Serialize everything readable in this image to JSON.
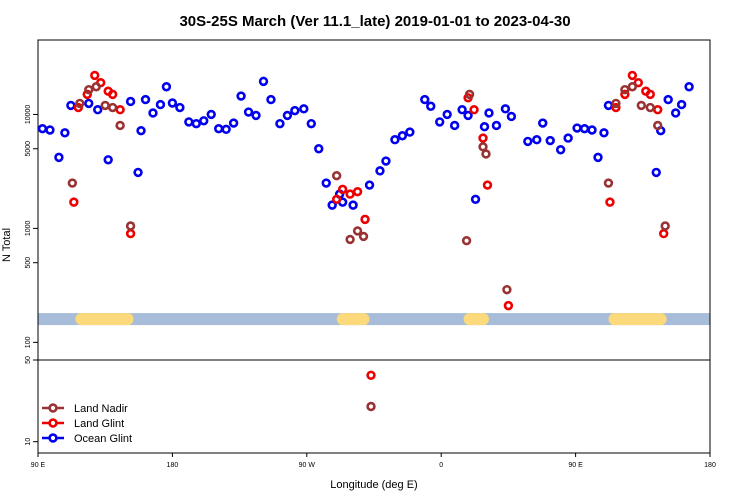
{
  "chart_data": {
    "type": "scatter",
    "title": "30S-25S March (Ver 11.1_late)   2019-01-01 to 2023-04-30",
    "xlabel": "Longitude (deg E)",
    "ylabel": "N Total",
    "x_ticks": [
      {
        "value": 90,
        "label": "90 E"
      },
      {
        "value": 180,
        "label": "180"
      },
      {
        "value": 270,
        "label": "90 W"
      },
      {
        "value": 360,
        "label": "0"
      },
      {
        "value": 450,
        "label": "90 E"
      },
      {
        "value": 540,
        "label": "180"
      }
    ],
    "xlim": [
      90,
      540
    ],
    "upper_panel": {
      "scale": "log",
      "ylim": [
        70,
        45000
      ],
      "y_ticks": [
        {
          "value": 100,
          "label": "100"
        },
        {
          "value": 500,
          "label": "500"
        },
        {
          "value": 1000,
          "label": "1000"
        },
        {
          "value": 5000,
          "label": "5000"
        },
        {
          "value": 10000,
          "label": "10000"
        }
      ]
    },
    "lower_panel": {
      "scale": "log",
      "ylim": [
        8,
        50
      ],
      "y_ticks": [
        {
          "value": 10,
          "label": "10"
        },
        {
          "value": 50,
          "label": "50"
        }
      ]
    },
    "land_strip": {
      "y_value": 160,
      "ocean_color": "#a7bcd8",
      "land_color": "#fcd97a",
      "land_ranges": [
        [
          115,
          154
        ],
        [
          290,
          312
        ],
        [
          375,
          392
        ],
        [
          472,
          511
        ]
      ]
    },
    "series": [
      {
        "name": "Ocean Glint",
        "color": "#0000ee",
        "points": [
          [
            93,
            7500
          ],
          [
            98,
            7300
          ],
          [
            104,
            4200
          ],
          [
            108,
            6900
          ],
          [
            112,
            12000
          ],
          [
            124,
            12500
          ],
          [
            130,
            11000
          ],
          [
            137,
            4000
          ],
          [
            152,
            13000
          ],
          [
            157,
            3100
          ],
          [
            159,
            7200
          ],
          [
            162,
            13500
          ],
          [
            167,
            10300
          ],
          [
            172,
            12200
          ],
          [
            176,
            17500
          ],
          [
            180,
            12600
          ],
          [
            185,
            11500
          ],
          [
            191,
            8600
          ],
          [
            196,
            8300
          ],
          [
            201,
            8800
          ],
          [
            206,
            10000
          ],
          [
            211,
            7500
          ],
          [
            216,
            7400
          ],
          [
            221,
            8400
          ],
          [
            226,
            14500
          ],
          [
            231,
            10500
          ],
          [
            236,
            9800
          ],
          [
            241,
            19500
          ],
          [
            246,
            13500
          ],
          [
            252,
            8300
          ],
          [
            257,
            9800
          ],
          [
            262,
            10800
          ],
          [
            268,
            11200
          ],
          [
            273,
            8300
          ],
          [
            278,
            5000
          ],
          [
            283,
            2500
          ],
          [
            287,
            1600
          ],
          [
            292,
            2000
          ],
          [
            294,
            1700
          ],
          [
            301,
            1600
          ],
          [
            312,
            2400
          ],
          [
            319,
            3200
          ],
          [
            323,
            3900
          ],
          [
            329,
            6000
          ],
          [
            334,
            6500
          ],
          [
            339,
            7000
          ],
          [
            349,
            13500
          ],
          [
            353,
            11800
          ],
          [
            359,
            8600
          ],
          [
            364,
            10000
          ],
          [
            369,
            8000
          ],
          [
            374,
            11000
          ],
          [
            378,
            9800
          ],
          [
            383,
            1800
          ],
          [
            389,
            7800
          ],
          [
            392,
            10300
          ],
          [
            397,
            8000
          ],
          [
            403,
            11200
          ],
          [
            407,
            9600
          ],
          [
            418,
            5800
          ],
          [
            424,
            6000
          ],
          [
            428,
            8400
          ],
          [
            433,
            5900
          ],
          [
            440,
            4900
          ],
          [
            445,
            6200
          ],
          [
            451,
            7600
          ],
          [
            456,
            7500
          ],
          [
            461,
            7300
          ],
          [
            465,
            4200
          ],
          [
            469,
            6900
          ],
          [
            472,
            12000
          ],
          [
            504,
            3100
          ],
          [
            507,
            7200
          ],
          [
            512,
            13500
          ],
          [
            517,
            10300
          ],
          [
            521,
            12200
          ],
          [
            526,
            17500
          ]
        ]
      },
      {
        "name": "Land Glint",
        "color": "#ee0000",
        "points": [
          [
            114,
            1700
          ],
          [
            117,
            11500
          ],
          [
            123,
            15000
          ],
          [
            128,
            22000
          ],
          [
            132,
            19000
          ],
          [
            137,
            16000
          ],
          [
            140,
            15000
          ],
          [
            145,
            11000
          ],
          [
            152,
            900
          ],
          [
            290,
            1800
          ],
          [
            294,
            2200
          ],
          [
            299,
            2000
          ],
          [
            304,
            2100
          ],
          [
            309,
            1200
          ],
          [
            313,
            37
          ],
          [
            378,
            14000
          ],
          [
            382,
            11000
          ],
          [
            388,
            6200
          ],
          [
            391,
            2400
          ],
          [
            405,
            210
          ],
          [
            473,
            1700
          ],
          [
            477,
            11500
          ],
          [
            483,
            15000
          ],
          [
            488,
            22000
          ],
          [
            492,
            19000
          ],
          [
            497,
            16000
          ],
          [
            500,
            15000
          ],
          [
            505,
            11000
          ],
          [
            509,
            900
          ]
        ]
      },
      {
        "name": "Land Nadir",
        "color": "#993333",
        "points": [
          [
            113,
            2500
          ],
          [
            118,
            12500
          ],
          [
            124,
            16500
          ],
          [
            129,
            17500
          ],
          [
            135,
            12000
          ],
          [
            140,
            11500
          ],
          [
            145,
            8000
          ],
          [
            152,
            1050
          ],
          [
            290,
            2900
          ],
          [
            299,
            800
          ],
          [
            304,
            950
          ],
          [
            308,
            850
          ],
          [
            313,
            20
          ],
          [
            377,
            780
          ],
          [
            379,
            15000
          ],
          [
            388,
            5200
          ],
          [
            390,
            4500
          ],
          [
            404,
            290
          ],
          [
            472,
            2500
          ],
          [
            477,
            12500
          ],
          [
            483,
            16500
          ],
          [
            488,
            17500
          ],
          [
            494,
            12000
          ],
          [
            500,
            11500
          ],
          [
            505,
            8000
          ],
          [
            510,
            1050
          ]
        ]
      }
    ],
    "legend": [
      "Land Nadir",
      "Land Glint",
      "Ocean Glint"
    ],
    "legend_position": "bottom-left"
  }
}
